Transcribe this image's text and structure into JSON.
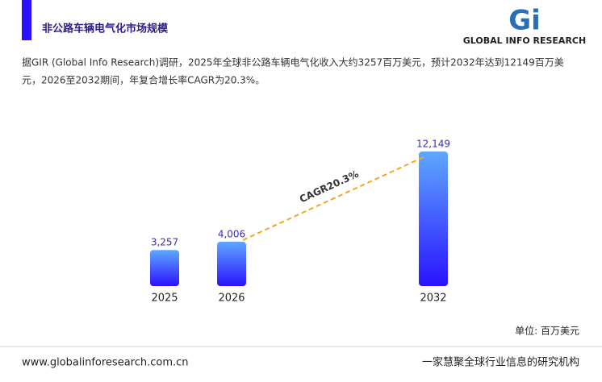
{
  "header": {
    "title": "非公路车辆电气化市场规模",
    "logo_mark": "Gi",
    "logo_text": "GLOBAL INFO RESEARCH"
  },
  "description": [
    "据GIR (Global Info Research)调研，2025年全球非公路车辆电气化收入大约3257百万美元，预计2032年达到12149百万美",
    "元，2026至2032期间，年复合增长率CAGR为20.3%。"
  ],
  "chart_data": {
    "type": "bar",
    "categories": [
      "2025",
      "2026",
      "2032"
    ],
    "values": [
      3257,
      4006,
      12149
    ],
    "value_labels": [
      "3,257",
      "4,006",
      "12,149"
    ],
    "annotation": "CAGR20.3%",
    "unit_label": "单位: 百万美元"
  },
  "footer": {
    "url": "www.globalinforesearch.com.cn",
    "tagline": "一家慧聚全球行业信息的研究机构"
  }
}
